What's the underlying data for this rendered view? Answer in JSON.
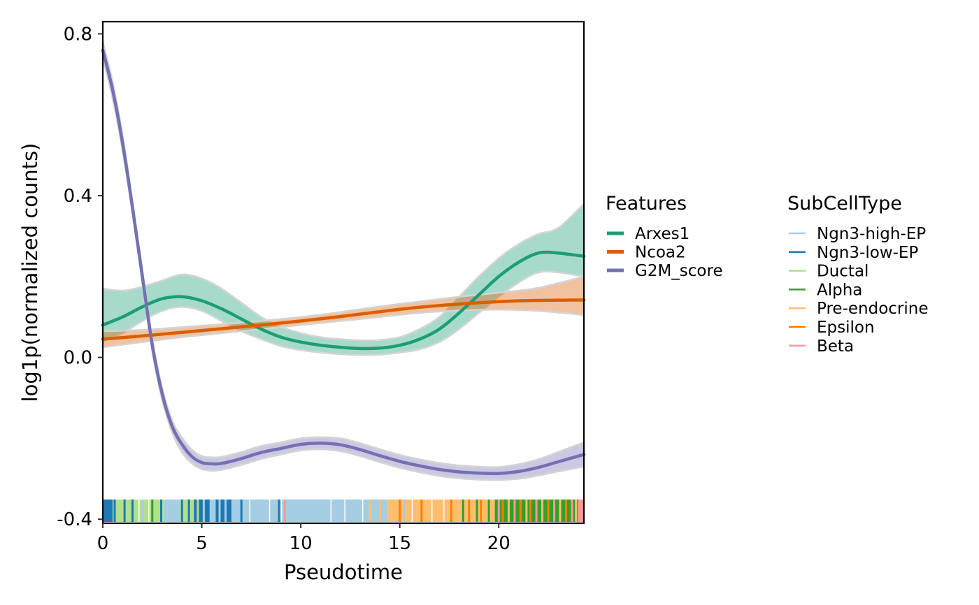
{
  "chart_data": {
    "type": "line",
    "xlabel": "Pseudotime",
    "ylabel": "log1p(normalized counts)",
    "xlim": [
      0,
      24.3
    ],
    "ylim": [
      -0.41,
      0.83
    ],
    "x_ticks": [
      0,
      5,
      10,
      15,
      20
    ],
    "x_tick_labels": [
      "0",
      "5",
      "10",
      "15",
      "20"
    ],
    "y_ticks": [
      -0.4,
      0.0,
      0.4,
      0.8
    ],
    "y_tick_labels": [
      "-0.4",
      "0.0",
      "0.4",
      "0.8"
    ],
    "grid": false,
    "legend_position": "right",
    "features_legend": {
      "title": "Features",
      "items": [
        {
          "label": "Arxes1",
          "color": "#1B9E77"
        },
        {
          "label": "Ncoa2",
          "color": "#D95F02"
        },
        {
          "label": "G2M_score",
          "color": "#7570B3"
        }
      ]
    },
    "celltype_legend": {
      "title": "SubCellType",
      "items": [
        {
          "label": "Ngn3-high-EP",
          "color": "#A6CEE3"
        },
        {
          "label": "Ngn3-low-EP",
          "color": "#1F78B4"
        },
        {
          "label": "Ductal",
          "color": "#B2DF8A"
        },
        {
          "label": "Alpha",
          "color": "#33A02C"
        },
        {
          "label": "Pre-endocrine",
          "color": "#FDBF6F"
        },
        {
          "label": "Epsilon",
          "color": "#FF7F00"
        },
        {
          "label": "Beta",
          "color": "#FB9A99"
        }
      ]
    },
    "series": [
      {
        "name": "Arxes1",
        "color": "#1B9E77",
        "x": [
          0,
          1,
          2,
          3,
          4,
          5,
          6,
          7,
          8,
          9,
          10,
          11,
          12,
          13,
          14,
          15,
          16,
          17,
          18,
          19,
          20,
          21,
          22,
          23,
          24.3
        ],
        "y": [
          0.08,
          0.1,
          0.125,
          0.145,
          0.15,
          0.14,
          0.12,
          0.095,
          0.07,
          0.05,
          0.038,
          0.03,
          0.025,
          0.022,
          0.023,
          0.03,
          0.045,
          0.07,
          0.11,
          0.155,
          0.2,
          0.235,
          0.258,
          0.258,
          0.25
        ],
        "lower": [
          0.04,
          0.06,
          0.09,
          0.115,
          0.125,
          0.115,
          0.09,
          0.065,
          0.045,
          0.028,
          0.018,
          0.012,
          0.008,
          0.006,
          0.007,
          0.012,
          0.02,
          0.038,
          0.07,
          0.11,
          0.15,
          0.185,
          0.21,
          0.21,
          0.2
        ],
        "upper": [
          0.17,
          0.165,
          0.175,
          0.19,
          0.205,
          0.195,
          0.17,
          0.135,
          0.1,
          0.075,
          0.06,
          0.05,
          0.045,
          0.042,
          0.043,
          0.05,
          0.07,
          0.1,
          0.15,
          0.2,
          0.245,
          0.28,
          0.305,
          0.32,
          0.38
        ]
      },
      {
        "name": "Ncoa2",
        "color": "#D95F02",
        "x": [
          0,
          2,
          4,
          6,
          8,
          10,
          12,
          14,
          16,
          18,
          20,
          22,
          24.3
        ],
        "y": [
          0.045,
          0.053,
          0.062,
          0.071,
          0.08,
          0.09,
          0.101,
          0.113,
          0.124,
          0.132,
          0.138,
          0.141,
          0.142
        ],
        "lower": [
          0.025,
          0.038,
          0.05,
          0.06,
          0.07,
          0.08,
          0.09,
          0.1,
          0.11,
          0.116,
          0.118,
          0.115,
          0.105
        ],
        "upper": [
          0.065,
          0.068,
          0.075,
          0.082,
          0.09,
          0.1,
          0.112,
          0.126,
          0.138,
          0.15,
          0.16,
          0.172,
          0.2
        ]
      },
      {
        "name": "G2M_score",
        "color": "#7570B3",
        "x": [
          0,
          0.5,
          1,
          1.5,
          2,
          2.5,
          3,
          3.5,
          4,
          4.5,
          5,
          5.5,
          6,
          7,
          8,
          9,
          10,
          11,
          12,
          13,
          14,
          15,
          16,
          17,
          18,
          19,
          20,
          21,
          22,
          23,
          24.3
        ],
        "y": [
          0.76,
          0.66,
          0.53,
          0.37,
          0.2,
          0.03,
          -0.09,
          -0.17,
          -0.215,
          -0.245,
          -0.26,
          -0.263,
          -0.262,
          -0.25,
          -0.235,
          -0.225,
          -0.215,
          -0.212,
          -0.216,
          -0.228,
          -0.243,
          -0.257,
          -0.268,
          -0.277,
          -0.283,
          -0.286,
          -0.287,
          -0.282,
          -0.272,
          -0.258,
          -0.24
        ],
        "lower": [
          0.74,
          0.64,
          0.51,
          0.355,
          0.185,
          0.015,
          -0.105,
          -0.185,
          -0.235,
          -0.262,
          -0.276,
          -0.28,
          -0.278,
          -0.266,
          -0.251,
          -0.24,
          -0.23,
          -0.227,
          -0.232,
          -0.244,
          -0.259,
          -0.273,
          -0.284,
          -0.293,
          -0.299,
          -0.302,
          -0.303,
          -0.3,
          -0.292,
          -0.282,
          -0.27
        ],
        "upper": [
          0.78,
          0.68,
          0.55,
          0.385,
          0.215,
          0.045,
          -0.075,
          -0.155,
          -0.198,
          -0.228,
          -0.244,
          -0.247,
          -0.246,
          -0.234,
          -0.219,
          -0.21,
          -0.2,
          -0.197,
          -0.2,
          -0.212,
          -0.227,
          -0.241,
          -0.252,
          -0.261,
          -0.267,
          -0.27,
          -0.271,
          -0.264,
          -0.252,
          -0.234,
          -0.21
        ]
      }
    ],
    "rug_segments": [
      {
        "x0": 0.0,
        "x1": 0.5,
        "type": "Ngn3-low-EP"
      },
      {
        "x0": 0.5,
        "x1": 3.1,
        "type": "Ductal"
      },
      {
        "x0": 3.1,
        "x1": 3.9,
        "type": "Ngn3-high-EP"
      },
      {
        "x0": 3.9,
        "x1": 4.6,
        "type": "Ductal"
      },
      {
        "x0": 4.6,
        "x1": 5.4,
        "type": "Ngn3-low-EP"
      },
      {
        "x0": 5.4,
        "x1": 5.7,
        "type": "Ngn3-high-EP"
      },
      {
        "x0": 5.7,
        "x1": 6.5,
        "type": "Ngn3-low-EP"
      },
      {
        "x0": 6.5,
        "x1": 14.4,
        "type": "Ngn3-high-EP"
      },
      {
        "x0": 14.4,
        "x1": 18.0,
        "type": "Pre-endocrine"
      },
      {
        "x0": 18.0,
        "x1": 19.8,
        "type": "Pre-endocrine"
      },
      {
        "x0": 19.8,
        "x1": 22.0,
        "type": "Alpha"
      },
      {
        "x0": 22.0,
        "x1": 24.0,
        "type": "Alpha"
      },
      {
        "x0": 24.0,
        "x1": 24.3,
        "type": "Beta"
      }
    ],
    "rug_ticks": [
      {
        "x": 0.6,
        "type": "Ngn3-low-EP"
      },
      {
        "x": 1.1,
        "type": "Ngn3-low-EP"
      },
      {
        "x": 1.5,
        "type": "Ngn3-low-EP"
      },
      {
        "x": 2.0,
        "type": "Ngn3-high-EP"
      },
      {
        "x": 2.5,
        "type": "Alpha"
      },
      {
        "x": 2.95,
        "type": "Ngn3-low-EP"
      },
      {
        "x": 4.0,
        "type": "Ngn3-low-EP"
      },
      {
        "x": 4.35,
        "type": "Ngn3-low-EP"
      },
      {
        "x": 4.8,
        "type": "Ductal"
      },
      {
        "x": 5.1,
        "type": "Ngn3-high-EP"
      },
      {
        "x": 5.9,
        "type": "Ngn3-high-EP"
      },
      {
        "x": 6.2,
        "type": "Ngn3-high-EP"
      },
      {
        "x": 7.0,
        "type": "Ngn3-low-EP"
      },
      {
        "x": 8.9,
        "type": "Ngn3-low-EP"
      },
      {
        "x": 9.2,
        "type": "Beta"
      },
      {
        "x": 13.5,
        "type": "Pre-endocrine"
      },
      {
        "x": 14.0,
        "type": "Pre-endocrine"
      },
      {
        "x": 15.0,
        "type": "Epsilon"
      },
      {
        "x": 15.2,
        "type": "Ngn3-high-EP"
      },
      {
        "x": 16.1,
        "type": "Epsilon"
      },
      {
        "x": 17.6,
        "type": "Epsilon"
      },
      {
        "x": 18.2,
        "type": "Alpha"
      },
      {
        "x": 18.5,
        "type": "Epsilon"
      },
      {
        "x": 18.9,
        "type": "Alpha"
      },
      {
        "x": 19.1,
        "type": "Epsilon"
      },
      {
        "x": 19.5,
        "type": "Alpha"
      },
      {
        "x": 20.0,
        "type": "Beta"
      },
      {
        "x": 20.2,
        "type": "Epsilon"
      },
      {
        "x": 20.5,
        "type": "Pre-endocrine"
      },
      {
        "x": 20.8,
        "type": "Beta"
      },
      {
        "x": 21.1,
        "type": "Epsilon"
      },
      {
        "x": 21.4,
        "type": "Pre-endocrine"
      },
      {
        "x": 21.6,
        "type": "Epsilon"
      },
      {
        "x": 21.9,
        "type": "Beta"
      },
      {
        "x": 22.2,
        "type": "Pre-endocrine"
      },
      {
        "x": 22.5,
        "type": "Epsilon"
      },
      {
        "x": 22.8,
        "type": "Beta"
      },
      {
        "x": 23.1,
        "type": "Pre-endocrine"
      },
      {
        "x": 23.4,
        "type": "Epsilon"
      },
      {
        "x": 23.7,
        "type": "Beta"
      },
      {
        "x": 23.9,
        "type": "Pre-endocrine"
      }
    ]
  }
}
